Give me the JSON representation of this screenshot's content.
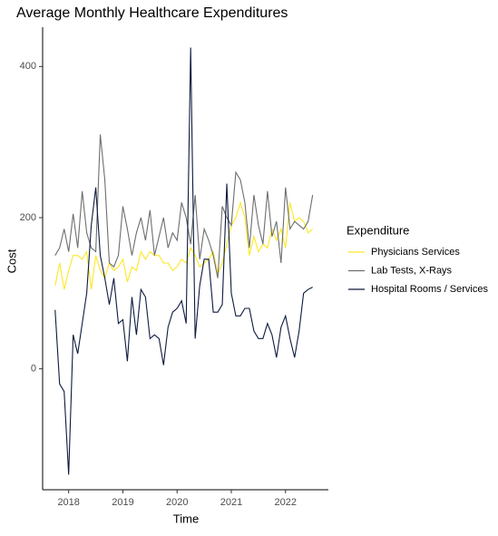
{
  "chart_data": {
    "type": "line",
    "title": "Average Monthly Healthcare Expenditures",
    "x_label": "Time",
    "y_label": "Cost",
    "legend_title": "Expenditure",
    "x": [
      2017.75,
      2017.833,
      2017.917,
      2018,
      2018.083,
      2018.167,
      2018.25,
      2018.333,
      2018.417,
      2018.5,
      2018.583,
      2018.667,
      2018.75,
      2018.833,
      2018.917,
      2019,
      2019.083,
      2019.167,
      2019.25,
      2019.333,
      2019.417,
      2019.5,
      2019.583,
      2019.667,
      2019.75,
      2019.833,
      2019.917,
      2020,
      2020.083,
      2020.167,
      2020.25,
      2020.333,
      2020.417,
      2020.5,
      2020.583,
      2020.667,
      2020.75,
      2020.833,
      2020.917,
      2021,
      2021.083,
      2021.167,
      2021.25,
      2021.333,
      2021.417,
      2021.5,
      2021.583,
      2021.667,
      2021.75,
      2021.833,
      2021.917,
      2022,
      2022.083,
      2022.167,
      2022.25,
      2022.333,
      2022.417,
      2022.5
    ],
    "xlim": [
      2017.52,
      2022.79
    ],
    "xticks": [
      2018,
      2019,
      2020,
      2021,
      2022
    ],
    "ylim": [
      -160,
      452
    ],
    "yticks": [
      0,
      200,
      400
    ],
    "series": [
      {
        "name": "Physicians Services",
        "color": "#fde725",
        "values": [
          110,
          140,
          105,
          130,
          150,
          150,
          145,
          155,
          105,
          150,
          130,
          120,
          140,
          130,
          135,
          145,
          115,
          135,
          130,
          155,
          145,
          155,
          150,
          150,
          140,
          140,
          130,
          135,
          145,
          140,
          160,
          150,
          135,
          140,
          145,
          155,
          125,
          140,
          165,
          190,
          200,
          220,
          200,
          150,
          175,
          155,
          165,
          160,
          185,
          170,
          185,
          160,
          220,
          195,
          200,
          195,
          180,
          185
        ]
      },
      {
        "name": "Lab Tests, X-Rays",
        "color": "#6e6e6e",
        "values": [
          150,
          160,
          185,
          155,
          205,
          160,
          235,
          180,
          160,
          155,
          310,
          250,
          140,
          135,
          150,
          215,
          185,
          150,
          180,
          200,
          170,
          210,
          150,
          175,
          200,
          160,
          180,
          170,
          220,
          200,
          165,
          230,
          145,
          185,
          170,
          150,
          120,
          215,
          200,
          190,
          260,
          250,
          220,
          160,
          230,
          190,
          165,
          235,
          175,
          195,
          140,
          240,
          185,
          195,
          190,
          185,
          195,
          230
        ]
      },
      {
        "name": "Hospital Rooms / Services",
        "color": "#0d1b3e",
        "values": [
          78,
          -20,
          -30,
          -140,
          45,
          20,
          60,
          100,
          190,
          240,
          150,
          120,
          85,
          120,
          60,
          65,
          10,
          95,
          45,
          105,
          95,
          40,
          45,
          40,
          5,
          55,
          75,
          80,
          90,
          60,
          425,
          40,
          110,
          145,
          145,
          75,
          75,
          85,
          245,
          100,
          70,
          70,
          80,
          80,
          50,
          40,
          40,
          60,
          45,
          15,
          55,
          70,
          40,
          15,
          50,
          100,
          105,
          108
        ]
      }
    ]
  }
}
